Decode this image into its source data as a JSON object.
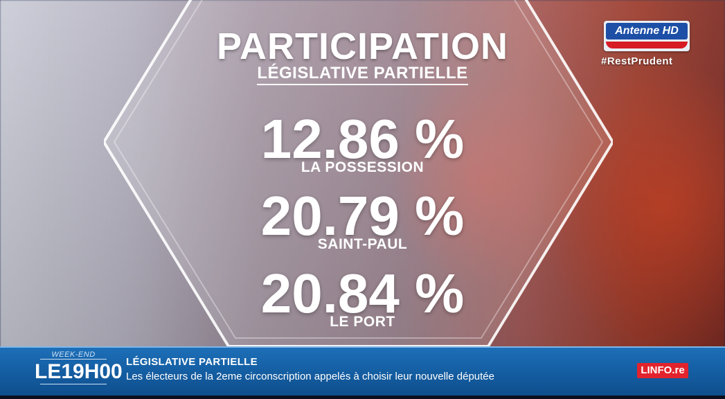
{
  "header": {
    "title": "PARTICIPATION",
    "subtitle": "LÉGISLATIVE PARTIELLE"
  },
  "stats": [
    {
      "value": "12.86 %",
      "label": "LA POSSESSION"
    },
    {
      "value": "20.79 %",
      "label": "SAINT-PAUL"
    },
    {
      "value": "20.84 %",
      "label": "LE PORT"
    }
  ],
  "channel": {
    "logo_text": "Antenne HD",
    "hashtag": "#RestPrudent"
  },
  "ticker": {
    "show_tag": "WEEK-END",
    "show_name": "LE19H00",
    "headline": "LÉGISLATIVE PARTIELLE",
    "text": "Les électeurs de la 2eme circonscription appelés à choisir leur nouvelle députée",
    "source_badge": "LINFO.re"
  },
  "colors": {
    "ticker_blue": "#155fa4",
    "channel_blue": "#1d4fa6",
    "channel_red": "#d71b25",
    "badge_red": "#e2232d"
  }
}
